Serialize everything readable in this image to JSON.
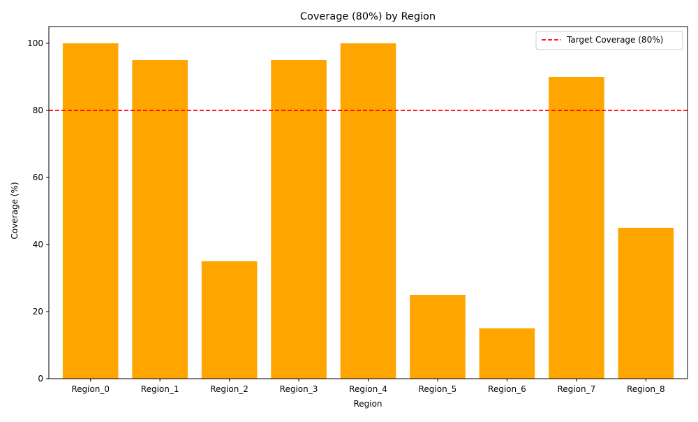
{
  "chart_data": {
    "type": "bar",
    "title": "Coverage (80%) by Region",
    "xlabel": "Region",
    "ylabel": "Coverage (%)",
    "categories": [
      "Region_0",
      "Region_1",
      "Region_2",
      "Region_3",
      "Region_4",
      "Region_5",
      "Region_6",
      "Region_7",
      "Region_8"
    ],
    "values": [
      100,
      95,
      35,
      95,
      100,
      25,
      15,
      90,
      45
    ],
    "ylim": [
      0,
      105
    ],
    "yticks": [
      0,
      20,
      40,
      60,
      80,
      100
    ],
    "grid": false,
    "bar_color": "#ffa500",
    "reference_line": {
      "value": 80,
      "label": "Target Coverage (80%)",
      "color": "#ff0000",
      "style": "dashed"
    },
    "legend": {
      "placement": "top-right",
      "entries": [
        "Target Coverage (80%)"
      ]
    }
  }
}
